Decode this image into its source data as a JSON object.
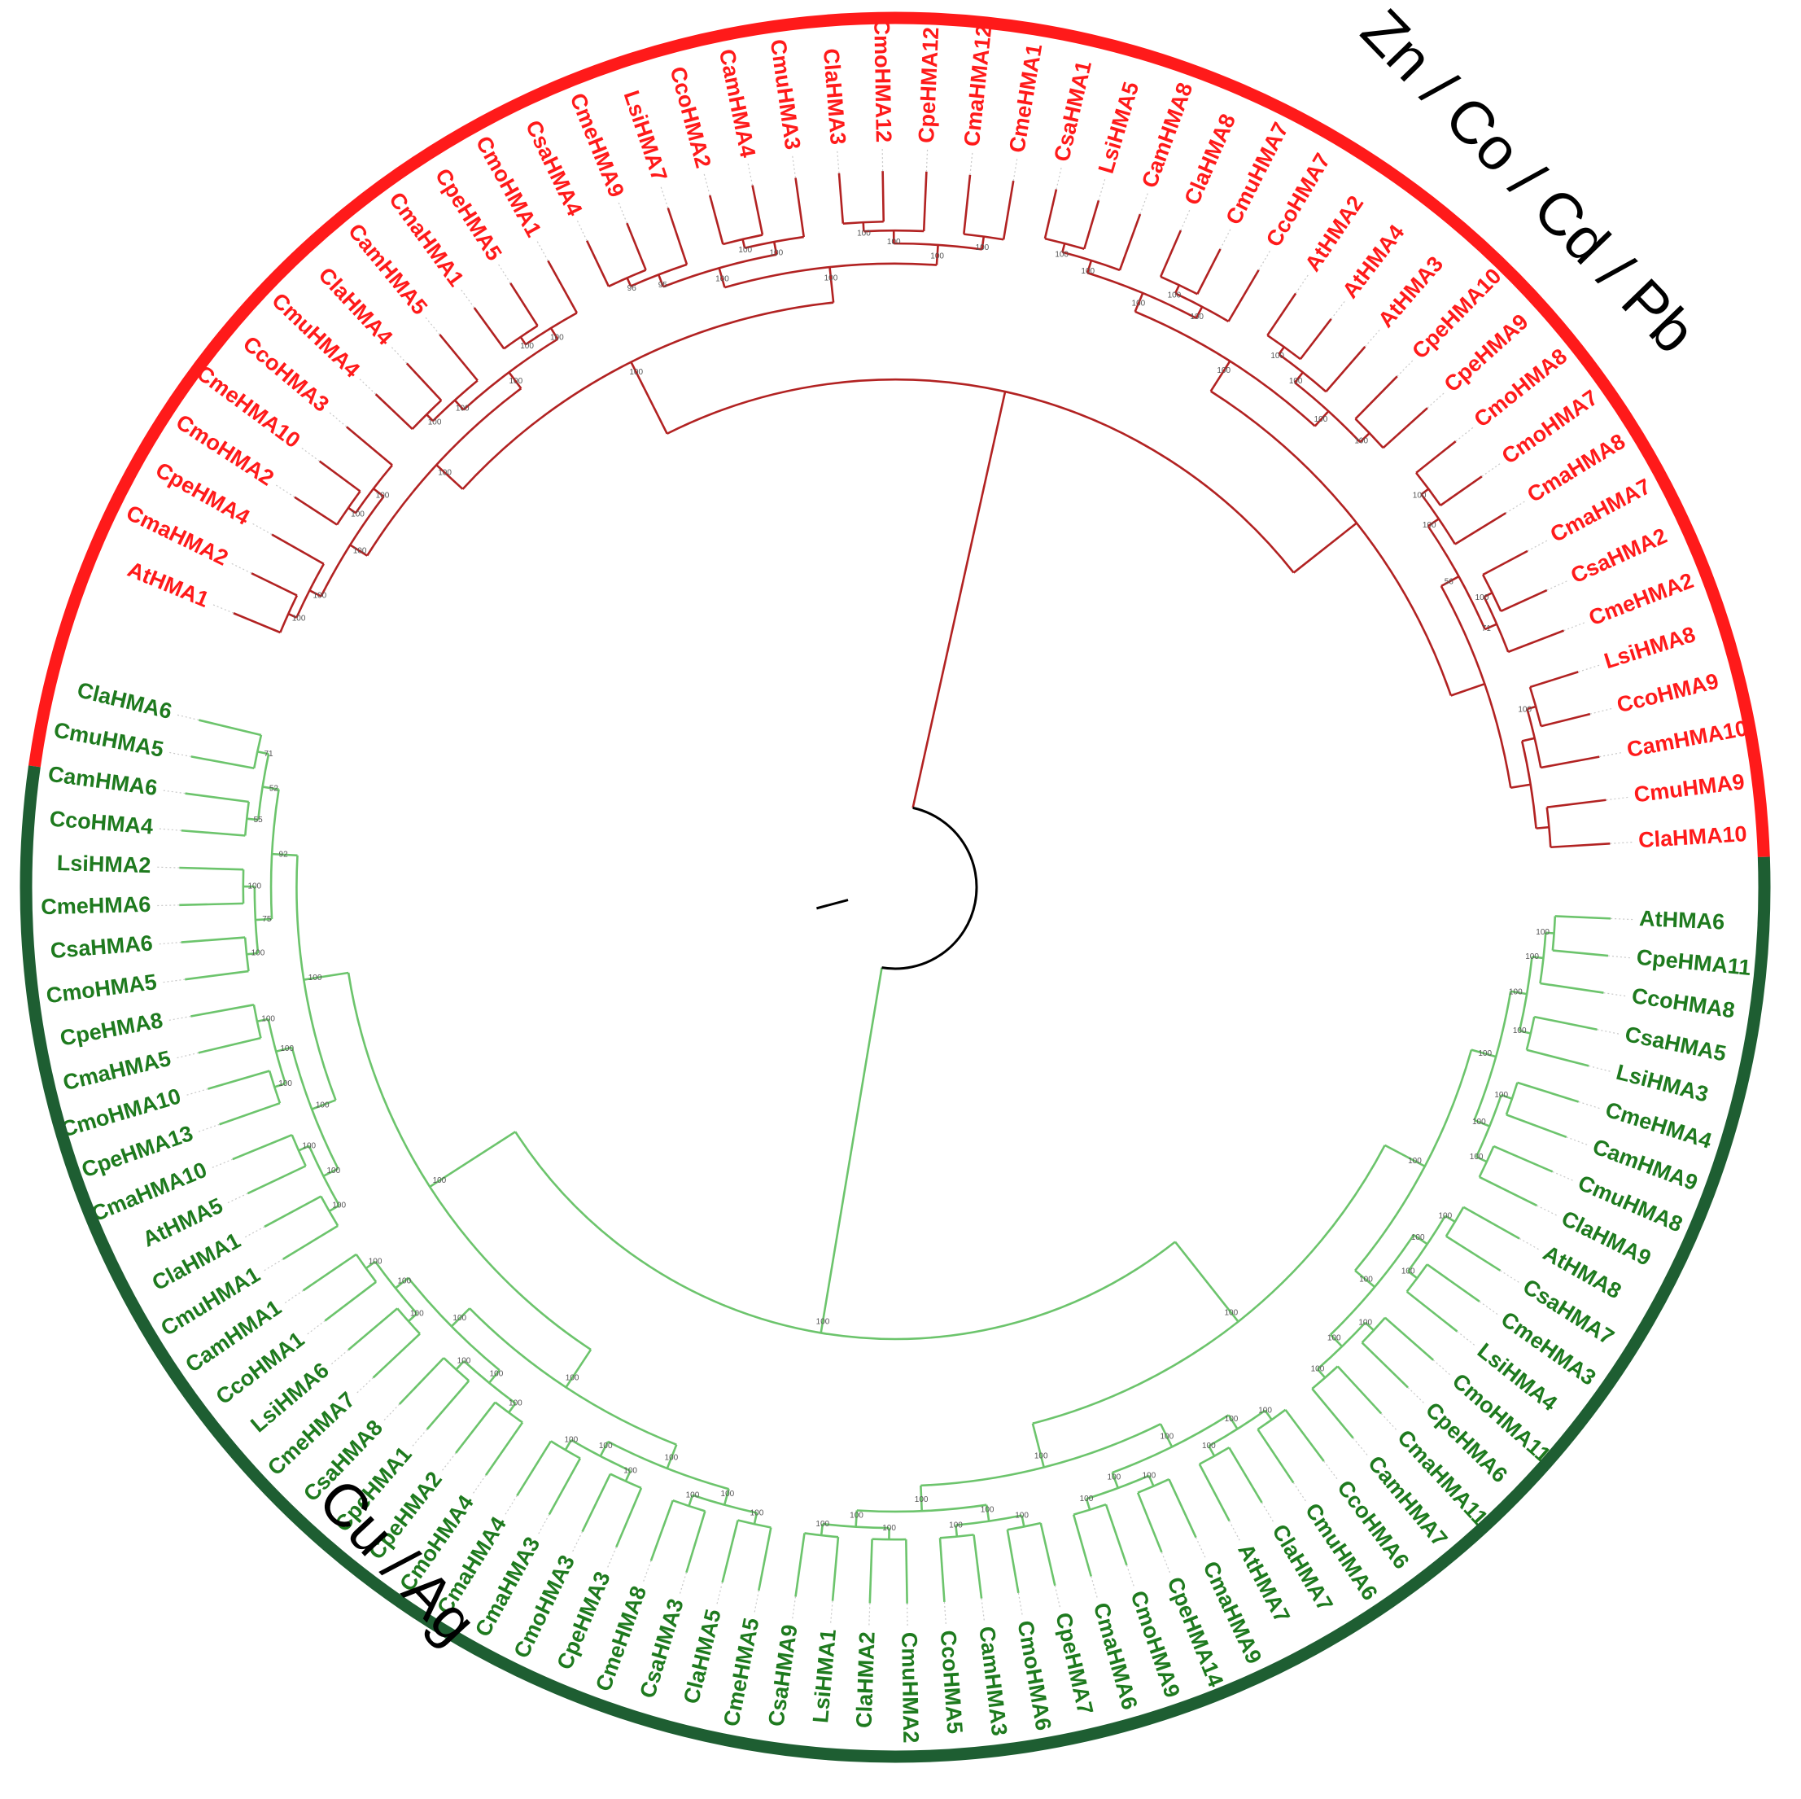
{
  "colors": {
    "zn_group": "#ff1a1a",
    "zn_branch": "#b22222",
    "cu_group": "#1e7a1e",
    "cu_ring": "#1e5e32",
    "cu_branch": "#6cc46c",
    "root": "#000000"
  },
  "groups": {
    "zn": {
      "label": "Zn / Co / Cd / Pb"
    },
    "cu": {
      "label": "Cu / Ag"
    }
  },
  "zn_leaves": [
    "AtHMA1",
    "CmaHMA2",
    "CpeHMA4",
    "CmoHMA2",
    "CmeHMA10",
    "CcoHMA3",
    "CmuHMA4",
    "ClaHMA4",
    "CamHMA5",
    "CmaHMA1",
    "CpeHMA5",
    "CmoHMA1",
    "CsaHMA4",
    "CmeHMA9",
    "LsiHMA7",
    "CcoHMA2",
    "CamHMA4",
    "CmuHMA3",
    "ClaHMA3",
    "CmoHMA12",
    "CpeHMA12",
    "CmaHMA12",
    "CmeHMA1",
    "CsaHMA1",
    "LsiHMA5",
    "CamHMA8",
    "ClaHMA8",
    "CmuHMA7",
    "CcoHMA7",
    "AtHMA2",
    "AtHMA4",
    "AtHMA3",
    "CpeHMA10",
    "CpeHMA9",
    "CmoHMA8",
    "CmoHMA7",
    "CmaHMA8",
    "CmaHMA7",
    "CsaHMA2",
    "CmeHMA2",
    "LsiHMA8",
    "CcoHMA9",
    "CamHMA10",
    "CmuHMA9",
    "ClaHMA10"
  ],
  "cu_leaves": [
    "AtHMA6",
    "CpeHMA11",
    "CcoHMA8",
    "CsaHMA5",
    "LsiHMA3",
    "CmeHMA4",
    "CamHMA9",
    "CmuHMA8",
    "ClaHMA9",
    "AtHMA8",
    "CsaHMA7",
    "CmeHMA3",
    "LsiHMA4",
    "CmoHMA11",
    "CpeHMA6",
    "CmaHMA11",
    "CamHMA7",
    "CcoHMA6",
    "CmuHMA6",
    "ClaHMA7",
    "AtHMA7",
    "CmaHMA9",
    "CpeHMA14",
    "CmoHMA9",
    "CmaHMA6",
    "CpeHMA7",
    "CmoHMA6",
    "CamHMA3",
    "CcoHMA5",
    "CmuHMA2",
    "ClaHMA2",
    "LsiHMA1",
    "CsaHMA9",
    "CmeHMA5",
    "ClaHMA5",
    "CsaHMA3",
    "CmeHMA8",
    "CpeHMA3",
    "CmoHMA3",
    "CmaHMA3",
    "CmaHMA4",
    "CmoHMA4",
    "CpeHMA2",
    "CpeHMA1",
    "CsaHMA8",
    "CmeHMA7",
    "LsiHMA6",
    "CcoHMA1",
    "CamHMA1",
    "CmuHMA1",
    "ClaHMA1",
    "AtHMA5",
    "CmaHMA10",
    "CpeHMA13",
    "CmoHMA10",
    "CmaHMA5",
    "CpeHMA8",
    "CmoHMA5",
    "CsaHMA6",
    "CmeHMA6",
    "LsiHMA2",
    "CcoHMA4",
    "CamHMA6",
    "CmuHMA5",
    "ClaHMA6"
  ],
  "zn_bootstrap": [
    "100",
    "100",
    "100",
    "100",
    "100",
    "100",
    "100",
    "100",
    "100",
    "100",
    "100",
    "96",
    "95",
    "100",
    "100",
    "100",
    "100",
    "100",
    "100",
    "100",
    "100",
    "100",
    "100",
    "100",
    "100",
    "100",
    "100",
    "100",
    "100",
    "100",
    "100",
    "100",
    "100",
    "100",
    "100",
    "71",
    "56",
    "100"
  ],
  "cu_bootstrap": [
    "100",
    "100",
    "100",
    "100",
    "100",
    "100",
    "100",
    "100",
    "100",
    "100",
    "100",
    "100",
    "100",
    "100",
    "100",
    "100",
    "100",
    "100",
    "100",
    "100",
    "100",
    "100",
    "100",
    "100",
    "100",
    "100",
    "100",
    "100",
    "100",
    "100",
    "100",
    "100",
    "100",
    "100",
    "100",
    "100",
    "100",
    "100",
    "100",
    "100",
    "100",
    "100",
    "100",
    "100",
    "100",
    "100",
    "100",
    "100",
    "100",
    "100",
    "100",
    "100",
    "100",
    "100",
    "100",
    "100",
    "75",
    "55",
    "71",
    "52",
    "92",
    "100",
    "100",
    "100"
  ]
}
